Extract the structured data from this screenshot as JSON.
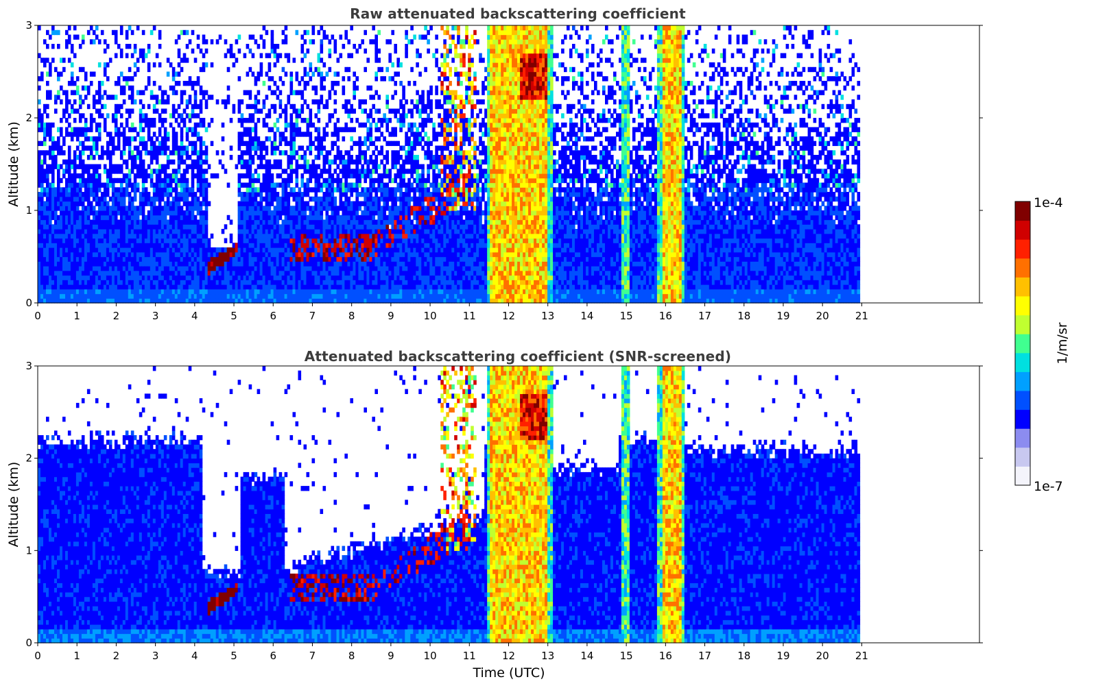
{
  "chart_data": [
    {
      "type": "heatmap",
      "title": "Raw attenuated backscattering coefficient",
      "xlabel": "",
      "ylabel": "Altitude (km)",
      "xlim": [
        0,
        24
      ],
      "ylim": [
        0,
        3
      ],
      "xticks": [
        "0",
        "1",
        "2",
        "3",
        "4",
        "5",
        "6",
        "7",
        "8",
        "9",
        "10",
        "11",
        "12",
        "13",
        "14",
        "15",
        "16",
        "17",
        "18",
        "19",
        "20",
        "21"
      ],
      "yticks": [
        "0",
        "1",
        "2",
        "3"
      ],
      "data_extent_hours": [
        0,
        20.95
      ],
      "features": [
        {
          "kind": "aerosol_layer",
          "x": [
            0,
            4.2
          ],
          "y": [
            0,
            1.5
          ]
        },
        {
          "kind": "aerosol_layer",
          "x": [
            16.5,
            20.95
          ],
          "y": [
            0,
            1.0
          ]
        },
        {
          "kind": "low_cloud",
          "x": [
            4.3,
            5.1
          ],
          "y": [
            0.3,
            0.65
          ]
        },
        {
          "kind": "low_cloud",
          "x": [
            6.4,
            8.6
          ],
          "y": [
            0.4,
            0.8
          ]
        },
        {
          "kind": "deep_cloud",
          "x": [
            11.45,
            13.1
          ],
          "y": [
            0,
            3
          ]
        },
        {
          "kind": "deep_cloud",
          "x": [
            14.85,
            15.05
          ],
          "y": [
            0,
            3
          ]
        },
        {
          "kind": "deep_cloud",
          "x": [
            15.8,
            16.5
          ],
          "y": [
            0,
            3
          ]
        }
      ]
    },
    {
      "type": "heatmap",
      "title": "Attenuated backscattering coefficient (SNR-screened)",
      "xlabel": "Time (UTC)",
      "ylabel": "Altitude (km)",
      "xlim": [
        0,
        24
      ],
      "ylim": [
        0,
        3
      ],
      "xticks": [
        "0",
        "1",
        "2",
        "3",
        "4",
        "5",
        "6",
        "7",
        "8",
        "9",
        "10",
        "11",
        "12",
        "13",
        "14",
        "15",
        "16",
        "17",
        "18",
        "19",
        "20",
        "21"
      ],
      "yticks": [
        "0",
        "1",
        "2",
        "3"
      ],
      "data_extent_hours": [
        0,
        20.95
      ],
      "features": [
        {
          "kind": "screened_layer",
          "x": [
            0,
            4.2
          ],
          "y": [
            0,
            2.2
          ]
        },
        {
          "kind": "screened_layer",
          "x": [
            5.2,
            6.3
          ],
          "y": [
            0,
            1.7
          ]
        },
        {
          "kind": "screened_layer",
          "x": [
            16.5,
            20.95
          ],
          "y": [
            0,
            2.2
          ]
        },
        {
          "kind": "low_cloud",
          "x": [
            4.3,
            5.1
          ],
          "y": [
            0.3,
            0.65
          ]
        },
        {
          "kind": "deep_cloud",
          "x": [
            11.45,
            13.1
          ],
          "y": [
            0,
            3
          ]
        },
        {
          "kind": "deep_cloud",
          "x": [
            14.85,
            15.05
          ],
          "y": [
            0,
            3
          ]
        },
        {
          "kind": "deep_cloud",
          "x": [
            15.8,
            16.5
          ],
          "y": [
            0,
            3
          ]
        }
      ]
    }
  ],
  "colorbar": {
    "label": "1/m/sr",
    "max_label": "1e-4",
    "min_label": "1e-7",
    "colormap": [
      "#f4f4fb",
      "#c8c8f0",
      "#8c8cf0",
      "#0000ff",
      "#0050ff",
      "#00a0ff",
      "#00e0e0",
      "#40ff90",
      "#c0ff30",
      "#ffff00",
      "#ffc000",
      "#ff7000",
      "#ff2000",
      "#d00000",
      "#800000"
    ]
  }
}
